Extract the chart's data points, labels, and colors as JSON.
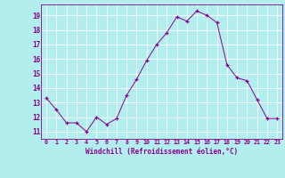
{
  "x": [
    0,
    1,
    2,
    3,
    4,
    5,
    6,
    7,
    8,
    9,
    10,
    11,
    12,
    13,
    14,
    15,
    16,
    17,
    18,
    19,
    20,
    21,
    22,
    23
  ],
  "y": [
    13.3,
    12.5,
    11.6,
    11.6,
    11.0,
    12.0,
    11.5,
    11.9,
    13.5,
    14.6,
    15.9,
    17.0,
    17.8,
    18.9,
    18.6,
    19.3,
    19.0,
    18.5,
    15.6,
    14.7,
    14.5,
    13.2,
    11.9,
    11.9
  ],
  "line_color": "#8B008B",
  "marker": "+",
  "marker_color": "#8B008B",
  "background_color": "#b2eeee",
  "grid_color": "#c8e8e8",
  "xlabel": "Windchill (Refroidissement éolien,°C)",
  "xlabel_color": "#8B008B",
  "tick_color": "#8B008B",
  "ylim": [
    10.5,
    19.75
  ],
  "xlim": [
    -0.5,
    23.5
  ],
  "yticks": [
    11,
    12,
    13,
    14,
    15,
    16,
    17,
    18,
    19
  ],
  "xticks": [
    0,
    1,
    2,
    3,
    4,
    5,
    6,
    7,
    8,
    9,
    10,
    11,
    12,
    13,
    14,
    15,
    16,
    17,
    18,
    19,
    20,
    21,
    22,
    23
  ],
  "xtick_labels": [
    "0",
    "1",
    "2",
    "3",
    "4",
    "5",
    "6",
    "7",
    "8",
    "9",
    "10",
    "11",
    "12",
    "13",
    "14",
    "15",
    "16",
    "17",
    "18",
    "19",
    "20",
    "21",
    "22",
    "23"
  ],
  "ytick_labels": [
    "11",
    "12",
    "13",
    "14",
    "15",
    "16",
    "17",
    "18",
    "19"
  ]
}
